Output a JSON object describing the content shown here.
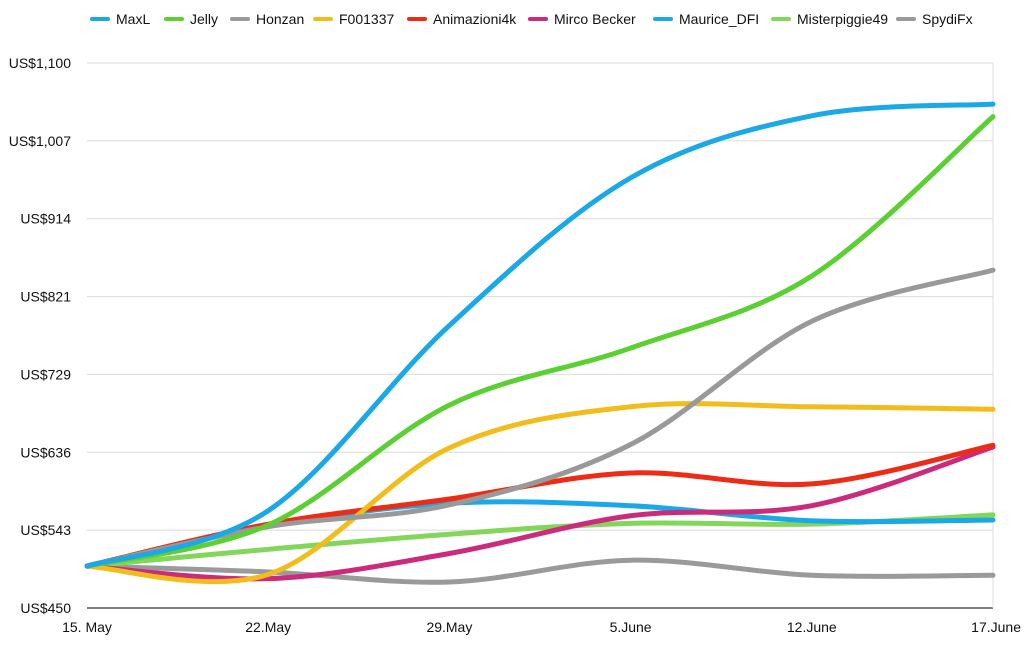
{
  "chart_data": {
    "type": "line",
    "title": "",
    "xlabel": "",
    "ylabel": "",
    "x": [
      "15. May",
      "22.May",
      "29.May",
      "5.June",
      "12.June",
      "17.June"
    ],
    "y_ticks": [
      "US$450",
      "US$543",
      "US$636",
      "US$729",
      "US$821",
      "US$914",
      "US$1,007",
      "US$1,100"
    ],
    "ylim": [
      450,
      1100
    ],
    "grid": true,
    "legend_position": "top",
    "series": [
      {
        "name": "MaxL",
        "color": "#1ba8e6",
        "values": [
          500,
          566,
          787,
          963,
          1037,
          1051
        ]
      },
      {
        "name": "Jelly",
        "color": "#5ccf33",
        "values": [
          500,
          549,
          692,
          760,
          846,
          1036
        ]
      },
      {
        "name": "Honzan",
        "color": "#999999",
        "values": [
          500,
          547,
          573,
          645,
          792,
          853
        ]
      },
      {
        "name": "F001337",
        "color": "#f2bd1b",
        "values": [
          500,
          490,
          641,
          690,
          690,
          687
        ]
      },
      {
        "name": "Animazioni4k",
        "color": "#ee2b15",
        "values": [
          500,
          550,
          580,
          611,
          598,
          644
        ]
      },
      {
        "name": "Mirco Becker",
        "color": "#cc2a7b",
        "values": [
          500,
          485,
          515,
          560,
          572,
          642
        ]
      },
      {
        "name": "Maurice_DFI",
        "color": "#1ba8e6",
        "values": [
          500,
          548,
          575,
          572,
          554,
          555
        ]
      },
      {
        "name": "Misterpiggie49",
        "color": "#82d65a",
        "values": [
          500,
          520,
          538,
          551,
          550,
          561
        ]
      },
      {
        "name": "SpydiFx",
        "color": "#9a9a9a",
        "values": [
          500,
          493,
          481,
          507,
          489,
          489
        ]
      }
    ]
  }
}
